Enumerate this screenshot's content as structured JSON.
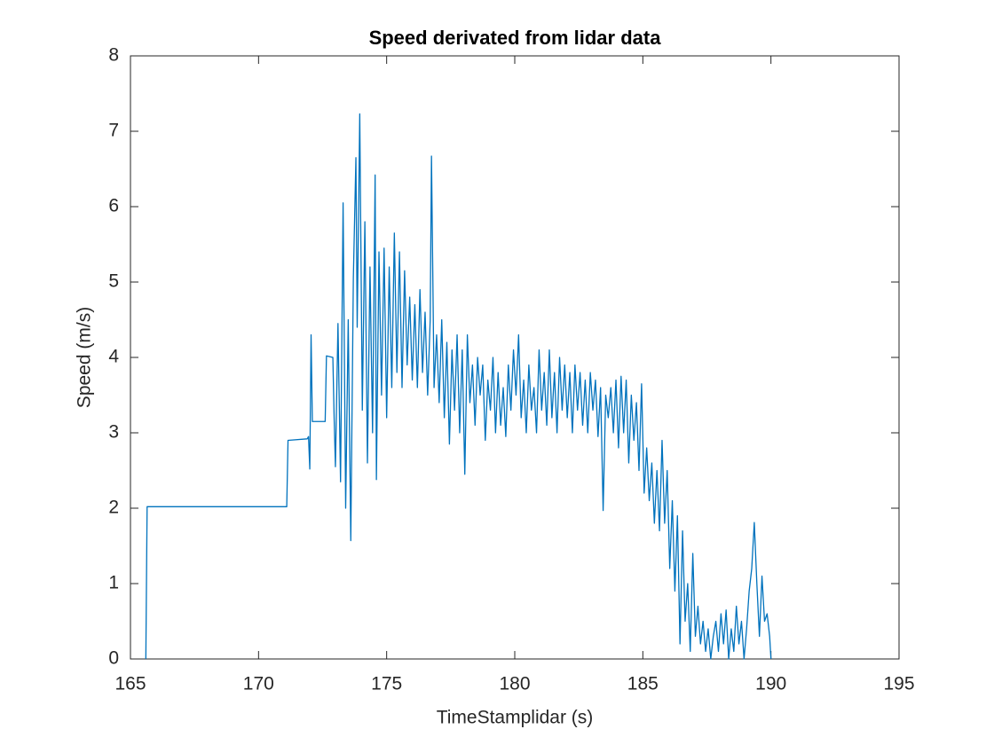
{
  "chart_data": {
    "type": "line",
    "title": "Speed derivated from lidar data",
    "xlabel": "TimeStamplidar (s)",
    "ylabel": "Speed (m/s)",
    "xlim": [
      165,
      195
    ],
    "xticks": [
      165,
      170,
      175,
      180,
      185,
      190,
      195
    ],
    "ylim": [
      0,
      8
    ],
    "yticks": [
      0,
      1,
      2,
      3,
      4,
      5,
      6,
      7,
      8
    ],
    "grid": false,
    "series": [
      {
        "color": "#0072bd",
        "x": [
          165.6,
          165.65,
          171.1,
          171.15,
          171.9,
          171.95,
          172.0,
          172.05,
          172.1,
          172.6,
          172.65,
          172.9,
          172.95,
          173.0,
          173.1,
          173.2,
          173.3,
          173.4,
          173.5,
          173.6,
          173.7,
          173.8,
          173.85,
          173.95,
          174.05,
          174.15,
          174.25,
          174.35,
          174.45,
          174.55,
          174.6,
          174.7,
          174.8,
          174.9,
          175.0,
          175.1,
          175.2,
          175.3,
          175.4,
          175.5,
          175.6,
          175.7,
          175.8,
          175.9,
          176.0,
          176.1,
          176.2,
          176.3,
          176.4,
          176.5,
          176.6,
          176.7,
          176.75,
          176.85,
          176.95,
          177.05,
          177.15,
          177.25,
          177.35,
          177.45,
          177.55,
          177.65,
          177.75,
          177.85,
          177.95,
          178.05,
          178.15,
          178.25,
          178.35,
          178.45,
          178.55,
          178.65,
          178.75,
          178.85,
          178.95,
          179.05,
          179.15,
          179.25,
          179.35,
          179.45,
          179.55,
          179.65,
          179.75,
          179.85,
          179.95,
          180.05,
          180.15,
          180.25,
          180.35,
          180.45,
          180.55,
          180.65,
          180.75,
          180.85,
          180.95,
          181.05,
          181.15,
          181.25,
          181.35,
          181.45,
          181.55,
          181.65,
          181.75,
          181.85,
          181.95,
          182.05,
          182.15,
          182.25,
          182.35,
          182.45,
          182.55,
          182.65,
          182.75,
          182.85,
          182.95,
          183.05,
          183.15,
          183.25,
          183.35,
          183.45,
          183.55,
          183.65,
          183.75,
          183.85,
          183.95,
          184.05,
          184.15,
          184.25,
          184.35,
          184.45,
          184.55,
          184.65,
          184.75,
          184.85,
          184.95,
          185.05,
          185.15,
          185.25,
          185.35,
          185.45,
          185.55,
          185.65,
          185.75,
          185.85,
          185.95,
          186.05,
          186.15,
          186.25,
          186.35,
          186.45,
          186.55,
          186.65,
          186.75,
          186.85,
          186.95,
          187.05,
          187.15,
          187.25,
          187.35,
          187.45,
          187.55,
          187.65,
          187.75,
          187.85,
          187.95,
          188.05,
          188.15,
          188.25,
          188.35,
          188.45,
          188.55,
          188.65,
          188.75,
          188.85,
          188.95,
          189.05,
          189.15,
          189.25,
          189.35,
          189.45,
          189.55,
          189.65,
          189.75,
          189.85,
          189.95,
          190.0
        ],
        "values": [
          0,
          2.02,
          2.02,
          2.9,
          2.92,
          2.95,
          2.52,
          4.3,
          3.15,
          3.15,
          4.02,
          4.0,
          3.2,
          2.55,
          4.45,
          2.35,
          6.05,
          2.0,
          4.5,
          1.57,
          5.05,
          6.65,
          4.4,
          7.23,
          3.3,
          5.8,
          2.6,
          5.2,
          3.0,
          6.42,
          2.38,
          5.4,
          3.5,
          5.45,
          3.2,
          5.2,
          3.6,
          5.65,
          3.8,
          5.4,
          3.6,
          5.15,
          3.9,
          4.8,
          3.7,
          4.7,
          3.6,
          4.9,
          3.8,
          4.6,
          3.5,
          4.5,
          6.67,
          3.6,
          4.3,
          3.4,
          4.5,
          3.2,
          4.2,
          2.85,
          4.1,
          3.3,
          4.3,
          3.0,
          4.1,
          2.45,
          4.3,
          3.4,
          3.9,
          3.1,
          4.0,
          3.5,
          3.9,
          2.9,
          3.7,
          3.3,
          4.0,
          3.0,
          3.8,
          3.1,
          3.6,
          2.95,
          3.9,
          3.3,
          4.1,
          3.5,
          4.3,
          3.2,
          3.7,
          3.0,
          3.9,
          3.3,
          3.6,
          3.0,
          4.1,
          3.3,
          3.8,
          3.1,
          4.1,
          3.2,
          3.8,
          3.0,
          4.0,
          3.3,
          3.9,
          3.2,
          3.8,
          3.0,
          3.9,
          3.3,
          3.8,
          3.1,
          3.7,
          3.0,
          3.8,
          3.3,
          3.7,
          2.95,
          3.6,
          1.97,
          3.5,
          3.2,
          3.6,
          3.0,
          3.7,
          2.8,
          3.75,
          3.0,
          3.7,
          2.6,
          3.5,
          2.9,
          3.4,
          2.5,
          3.65,
          2.2,
          2.8,
          2.1,
          2.6,
          1.8,
          2.5,
          1.7,
          2.9,
          1.8,
          2.5,
          1.2,
          2.1,
          0.9,
          1.9,
          0.2,
          1.7,
          0.5,
          1.0,
          0.1,
          1.4,
          0.3,
          0.7,
          0.2,
          0.5,
          0.1,
          0.4,
          0,
          0.3,
          0.5,
          0.1,
          0.6,
          0.2,
          0.65,
          0,
          0.4,
          0.1,
          0.7,
          0.2,
          0.5,
          0,
          0.4,
          0.9,
          1.2,
          1.81,
          1.0,
          0.3,
          1.1,
          0.5,
          0.6,
          0.3,
          0
        ]
      }
    ]
  }
}
